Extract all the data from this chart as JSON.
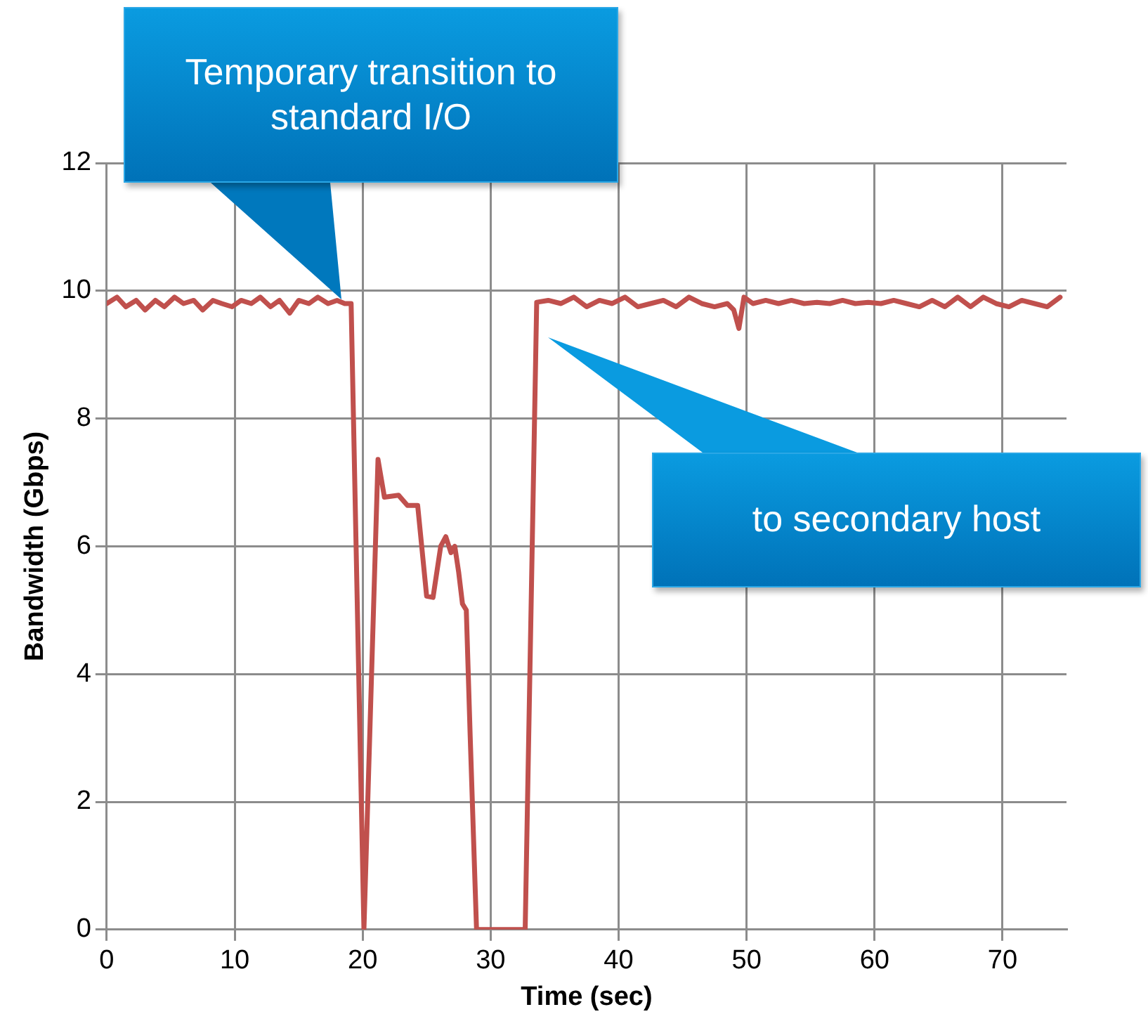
{
  "chart_data": {
    "type": "line",
    "xlabel": "Time (sec)",
    "ylabel": "Bandwidth (Gbps)",
    "x": [
      0,
      0.8,
      1.5,
      2.3,
      3,
      3.8,
      4.5,
      5.3,
      6,
      6.8,
      7.5,
      8.3,
      9,
      9.8,
      10.5,
      11.3,
      12,
      12.8,
      13.5,
      14.3,
      15,
      15.8,
      16.5,
      17.3,
      18,
      18.6,
      19.1,
      20.1,
      21.2,
      21.7,
      22.8,
      23.5,
      24.3,
      25,
      25.5,
      26.1,
      26.5,
      26.9,
      27.2,
      27.5,
      27.8,
      28.1,
      28.4,
      28.9,
      32.7,
      33.6,
      34.5,
      35.5,
      36.5,
      37.5,
      38.5,
      39.5,
      40.5,
      41.5,
      42.5,
      43.5,
      44.5,
      45.5,
      46.5,
      47.5,
      48.5,
      49,
      49.4,
      49.8,
      50.5,
      51.5,
      52.5,
      53.5,
      54.5,
      55.5,
      56.5,
      57.5,
      58.5,
      59.5,
      60.5,
      61.5,
      62.5,
      63.5,
      64.5,
      65.5,
      66.5,
      67.5,
      68.5,
      69.5,
      70.5,
      71.5,
      72.5,
      73.5,
      74.5
    ],
    "series": [
      {
        "color": "#c0504d",
        "values": [
          9.8,
          9.9,
          9.75,
          9.85,
          9.7,
          9.85,
          9.75,
          9.9,
          9.8,
          9.85,
          9.7,
          9.85,
          9.8,
          9.75,
          9.85,
          9.8,
          9.9,
          9.75,
          9.85,
          9.65,
          9.85,
          9.8,
          9.9,
          9.8,
          9.85,
          9.8,
          9.8,
          0,
          7.36,
          6.77,
          6.8,
          6.64,
          6.64,
          5.22,
          5.2,
          6.0,
          6.15,
          5.9,
          6.0,
          5.6,
          5.1,
          5.0,
          3.05,
          0,
          0,
          9.82,
          9.85,
          9.8,
          9.9,
          9.75,
          9.85,
          9.8,
          9.9,
          9.75,
          9.8,
          9.85,
          9.75,
          9.9,
          9.8,
          9.75,
          9.8,
          9.7,
          9.41,
          9.9,
          9.8,
          9.85,
          9.8,
          9.85,
          9.8,
          9.82,
          9.8,
          9.85,
          9.8,
          9.82,
          9.8,
          9.85,
          9.8,
          9.75,
          9.85,
          9.75,
          9.9,
          9.75,
          9.9,
          9.8,
          9.75,
          9.85,
          9.8,
          9.75,
          9.9
        ]
      }
    ],
    "xlim": [
      0,
      75
    ],
    "xticks": [
      0,
      10,
      20,
      30,
      40,
      50,
      60,
      70
    ],
    "ylim": [
      0,
      12
    ],
    "yticks": [
      0,
      2,
      4,
      6,
      8,
      10,
      12
    ],
    "grid": true,
    "legend": false,
    "marker": "none",
    "line_style": "solid",
    "annotations": [
      "Temporary transition to standard I/O",
      "to secondary host"
    ]
  }
}
